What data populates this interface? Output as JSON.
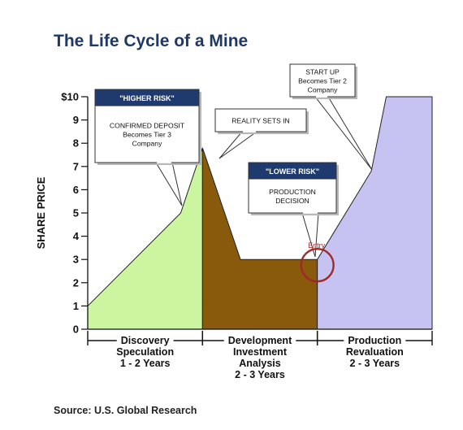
{
  "colors": {
    "title": "#1f3864",
    "header_box": "#1f3a6e",
    "discovery_fill": "#ccf5a0",
    "development_fill": "#8a5a0c",
    "production_fill": "#c6c2f2",
    "entry_circle": "#a0282a"
  },
  "chart_data": {
    "type": "area",
    "title": "The Life Cycle of a Mine",
    "ylabel": "SHARE PRICE",
    "xlabel": "",
    "ylim": [
      0,
      10
    ],
    "y_ticks": [
      "0",
      "1",
      "2",
      "3",
      "4",
      "5",
      "6",
      "7",
      "8",
      "9",
      "$10"
    ],
    "grid": false,
    "phases": [
      {
        "lines": [
          "Discovery",
          "Speculation",
          "1 - 2 Years"
        ],
        "fill": "#ccf5a0"
      },
      {
        "lines": [
          "Development",
          "Investment",
          "Analysis",
          "2 - 3 Years"
        ],
        "fill": "#8a5a0c"
      },
      {
        "lines": [
          "Production",
          "Revaluation",
          "2 - 3 Years"
        ],
        "fill": "#c6c2f2"
      }
    ],
    "series": [
      {
        "x": [
          0,
          0.81,
          1.0
        ],
        "y": [
          1,
          5,
          7.8
        ]
      },
      {
        "x": [
          1.0,
          1.33,
          2.0
        ],
        "y": [
          7.8,
          3,
          3
        ]
      },
      {
        "x": [
          2.0,
          2.47,
          2.6,
          3.0
        ],
        "y": [
          3,
          6.8,
          10,
          10
        ]
      }
    ],
    "callouts": [
      {
        "header": "\"HIGHER RISK\"",
        "lines": [
          "CONFIRMED DEPOSIT",
          "Becomes Tier 3",
          "Company"
        ]
      },
      {
        "header": "",
        "lines": [
          "REALITY SETS IN"
        ]
      },
      {
        "header": "\"LOWER RISK\"",
        "lines": [
          "PRODUCTION",
          "DECISION"
        ]
      },
      {
        "header": "",
        "lines": [
          "START UP",
          "Becomes Tier 2",
          "Company"
        ]
      }
    ],
    "annotations": [
      "Entry"
    ]
  },
  "source": "Source: U.S. Global Research"
}
